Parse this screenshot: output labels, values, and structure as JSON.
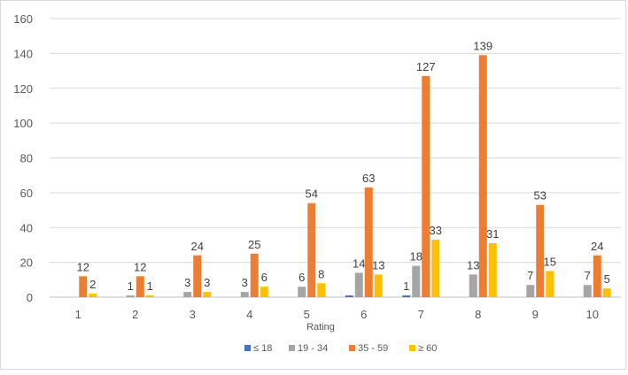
{
  "chart_data": {
    "type": "bar",
    "title": "",
    "xlabel": "Rating",
    "ylabel": "",
    "ylim": [
      0,
      160
    ],
    "yticks": [
      0,
      20,
      40,
      60,
      80,
      100,
      120,
      140,
      160
    ],
    "grid": true,
    "legend_position": "bottom",
    "categories": [
      "1",
      "2",
      "3",
      "4",
      "5",
      "6",
      "7",
      "8",
      "9",
      "10"
    ],
    "series": [
      {
        "name": "≤ 18",
        "color": "#4472c4",
        "values": [
          0,
          0,
          0,
          0,
          0,
          1,
          1,
          0,
          0,
          0
        ],
        "labels": [
          "",
          "",
          "",
          "",
          "",
          "",
          "1",
          "",
          "",
          ""
        ]
      },
      {
        "name": "19 - 34",
        "color": "#a5a5a5",
        "values": [
          0,
          1,
          3,
          3,
          6,
          14,
          18,
          13,
          7,
          7
        ],
        "labels": [
          "",
          "1",
          "3",
          "3",
          "6",
          "14",
          "18",
          "13",
          "7",
          "7"
        ]
      },
      {
        "name": "35 - 59",
        "color": "#ed7d31",
        "values": [
          12,
          12,
          24,
          25,
          54,
          63,
          127,
          139,
          53,
          24
        ],
        "labels": [
          "12",
          "12",
          "24",
          "25",
          "54",
          "63",
          "127",
          "139",
          "53",
          "24"
        ]
      },
      {
        "name": "≥ 60",
        "color": "#ffc000",
        "values": [
          2,
          1,
          3,
          6,
          8,
          13,
          33,
          31,
          15,
          5
        ],
        "labels": [
          "2",
          "1",
          "3",
          "6",
          "8",
          "13",
          "33",
          "31",
          "15",
          "5"
        ]
      }
    ]
  }
}
